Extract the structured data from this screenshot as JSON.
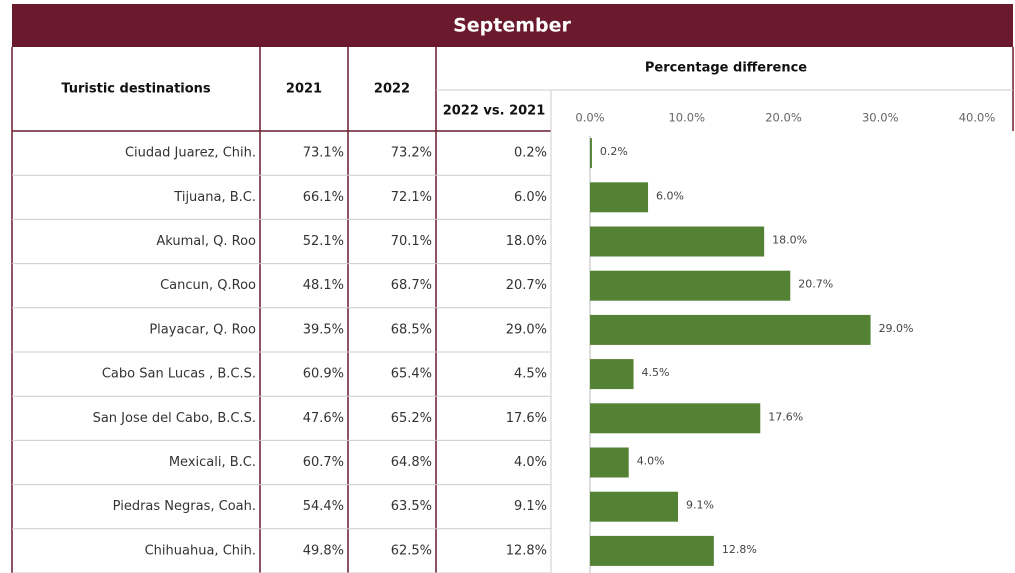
{
  "title": "September",
  "table": {
    "header": [
      "Turistic destinations",
      "2021",
      "2022",
      "Percentage difference",
      "2022 vs. 2021"
    ],
    "rows": [
      [
        "Ciudad Juarez, Chih.",
        "73.1%",
        "73.2%"
      ],
      [
        "Tijuana, B.C.",
        "66.1%",
        "72.1%"
      ],
      [
        "Akumal, Q. Roo",
        "52.1%",
        "70.1%"
      ],
      [
        "Cancun, Q.Roo",
        "48.1%",
        "68.7%"
      ],
      [
        "Playacar, Q. Roo",
        "39.5%",
        "68.5%"
      ],
      [
        "Cabo San Lucas , B.C.S.",
        "60.9%",
        "65.4%"
      ],
      [
        "San Jose del Cabo, B.C.S.",
        "47.6%",
        "65.2%"
      ],
      [
        "Mexicali, B.C.",
        "60.7%",
        "64.8%"
      ],
      [
        "Piedras Negras, Coah.",
        "54.4%",
        "63.5%"
      ],
      [
        "Chihuahua, Chih.",
        "49.8%",
        "62.5%"
      ]
    ]
  },
  "chart_data": {
    "type": "bar",
    "orientation": "horizontal",
    "color": "#548235",
    "values": [
      0.2,
      6.0,
      18.0,
      20.7,
      29.0,
      4.5,
      17.6,
      4.0,
      9.1,
      12.8
    ],
    "value_labels": [
      "0.2%",
      "6.0%",
      "18.0%",
      "20.7%",
      "29.0%",
      "4.5%",
      "17.6%",
      "4.0%",
      "9.1%",
      "12.8%"
    ],
    "xlim": [
      0,
      40
    ],
    "xticks": [
      {
        "value": 0,
        "label": "0.0%"
      },
      {
        "value": 10,
        "label": "10.0%"
      },
      {
        "value": 20,
        "label": "20.0%"
      },
      {
        "value": 30,
        "label": "30.0%"
      },
      {
        "value": 40,
        "label": "40.0%"
      }
    ]
  }
}
